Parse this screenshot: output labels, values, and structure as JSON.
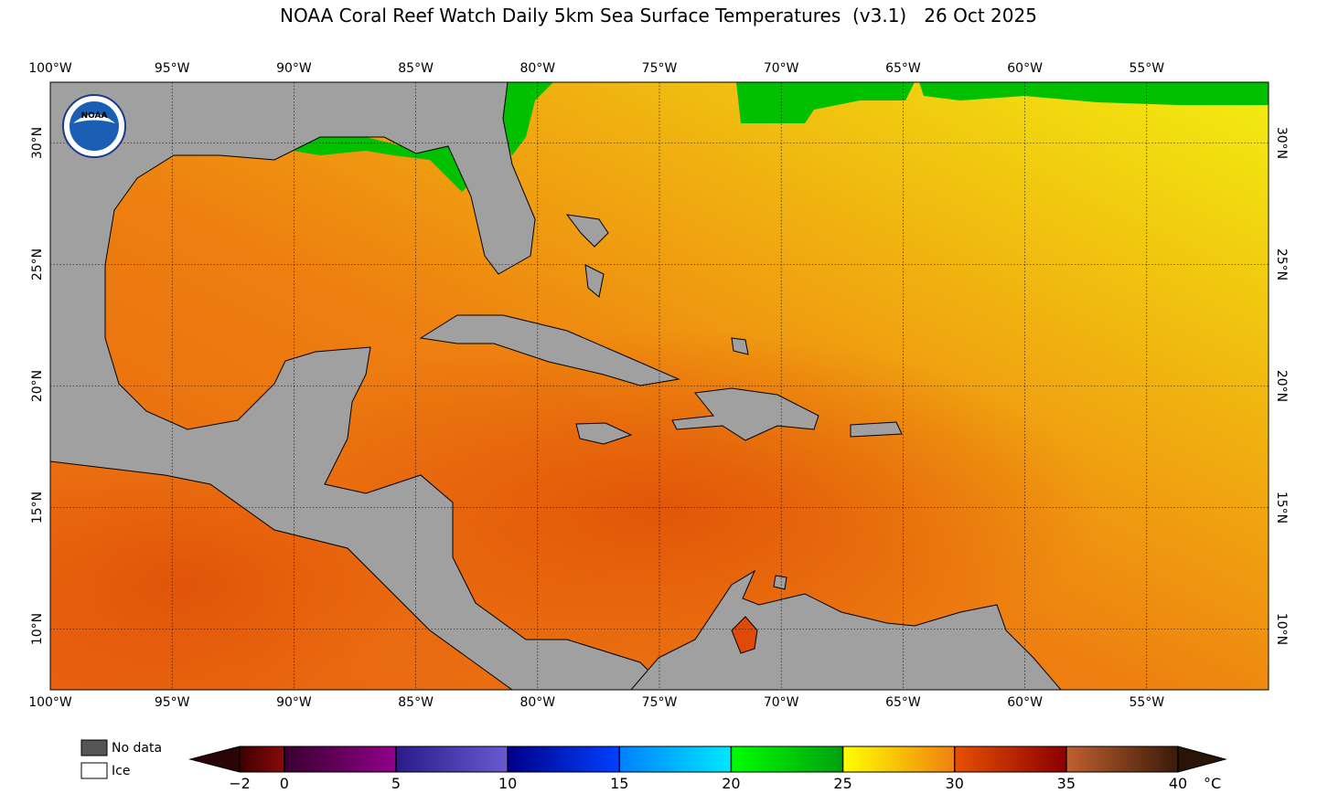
{
  "title": "NOAA Coral Reef Watch Daily 5km Sea Surface Temperatures  (v3.1)   26 Oct 2025",
  "logo_text": "NOAA",
  "map": {
    "xlim": [
      -100,
      -50
    ],
    "ylim": [
      7.5,
      32.5
    ],
    "xticks": [
      {
        "value": -100,
        "label": "100°W"
      },
      {
        "value": -95,
        "label": "95°W"
      },
      {
        "value": -90,
        "label": "90°W"
      },
      {
        "value": -85,
        "label": "85°W"
      },
      {
        "value": -80,
        "label": "80°W"
      },
      {
        "value": -75,
        "label": "75°W"
      },
      {
        "value": -70,
        "label": "70°W"
      },
      {
        "value": -65,
        "label": "65°W"
      },
      {
        "value": -60,
        "label": "60°W"
      },
      {
        "value": -55,
        "label": "55°W"
      }
    ],
    "yticks": [
      {
        "value": 10,
        "label": "10°N"
      },
      {
        "value": 15,
        "label": "15°N"
      },
      {
        "value": 20,
        "label": "20°N"
      },
      {
        "value": 25,
        "label": "25°N"
      },
      {
        "value": 30,
        "label": "30°N"
      }
    ],
    "grid": true
  },
  "legend": [
    {
      "label": "No data",
      "color": "#555555"
    },
    {
      "label": "Ice",
      "color": "#ffffff"
    }
  ],
  "colorbar": {
    "unit": "°C",
    "range": [
      -2,
      40
    ],
    "ticks": [
      {
        "value": -2,
        "label": "−2"
      },
      0,
      5,
      10,
      15,
      20,
      25,
      30,
      35,
      40
    ],
    "segment_colors": [
      [
        "#3d0000",
        "#8a0a0a"
      ],
      [
        "#3a0030",
        "#90008a"
      ],
      [
        "#2a1a8a",
        "#6a5ad0"
      ],
      [
        "#00008a",
        "#0040ff"
      ],
      [
        "#0080ff",
        "#00e8ff"
      ],
      [
        "#00ff00",
        "#00a010"
      ],
      [
        "#ffff00",
        "#f08010"
      ],
      [
        "#e85000",
        "#8a0000"
      ],
      [
        "#c06030",
        "#3a1a08"
      ]
    ],
    "extend_colors": [
      "#2a0505",
      "#2a1408"
    ]
  }
}
